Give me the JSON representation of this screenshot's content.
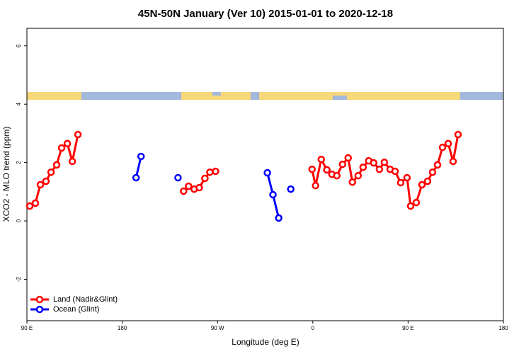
{
  "chart_data": {
    "type": "line",
    "title": "45N-50N January (Ver 10)   2015-01-01 to 2020-12-18",
    "xlabel": "Longitude (deg E)",
    "ylabel": "XCO2 - MLO trend (ppm)",
    "xlim": [
      90,
      540
    ],
    "ylim": [
      -3.42,
      6.6
    ],
    "xticks": [
      {
        "value": 90,
        "label": "90 E"
      },
      180,
      {
        "value": 270,
        "label": "90 W"
      },
      {
        "value": 360,
        "label": "0"
      },
      {
        "value": 450,
        "label": "90 E"
      },
      {
        "value": 540,
        "label": "180"
      }
    ],
    "yticks": [
      -2,
      0,
      2,
      4,
      6
    ],
    "legend": "bottom-left",
    "series": [
      {
        "name": "Land (Nadir&Glint)",
        "color": "#ff0000",
        "x": [
          92.7,
          98,
          102.7,
          108,
          112.8,
          118.1,
          122.8,
          128.2,
          132.9,
          138.2,
          null,
          238,
          242.7,
          248,
          252.8,
          258.1,
          262.8,
          268.2,
          null,
          359.3,
          362.6,
          368,
          373.3,
          378,
          382.7,
          388.1,
          393.4,
          397.4,
          402.8,
          407.5,
          412.8,
          417.5,
          422.9,
          427.6,
          433,
          437.7,
          443,
          449,
          452.4,
          457.7,
          463.1,
          468.4,
          473.1,
          477.8,
          482.5,
          487.9,
          492.5,
          497.2
        ],
        "values": [
          0.51,
          0.61,
          1.24,
          1.36,
          1.67,
          1.92,
          2.5,
          2.65,
          2.04,
          2.96,
          null,
          1.02,
          1.19,
          1.09,
          1.14,
          1.46,
          1.67,
          1.7,
          null,
          1.77,
          1.21,
          2.11,
          1.75,
          1.6,
          1.55,
          1.94,
          2.16,
          1.33,
          1.55,
          1.84,
          2.06,
          1.99,
          1.77,
          2.01,
          1.77,
          1.7,
          1.31,
          1.48,
          0.51,
          0.63,
          1.24,
          1.36,
          1.67,
          1.92,
          2.52,
          2.65,
          2.04,
          2.96
        ]
      },
      {
        "name": "Ocean (Glint)",
        "color": "#0000ff",
        "x": [
          193.1,
          197.8,
          null,
          232.7,
          null,
          317.1,
          322.4,
          327.8,
          null,
          339.2
        ],
        "values": [
          1.48,
          2.21,
          null,
          1.48,
          null,
          1.65,
          0.9,
          0.1,
          null,
          1.09
        ]
      }
    ]
  }
}
